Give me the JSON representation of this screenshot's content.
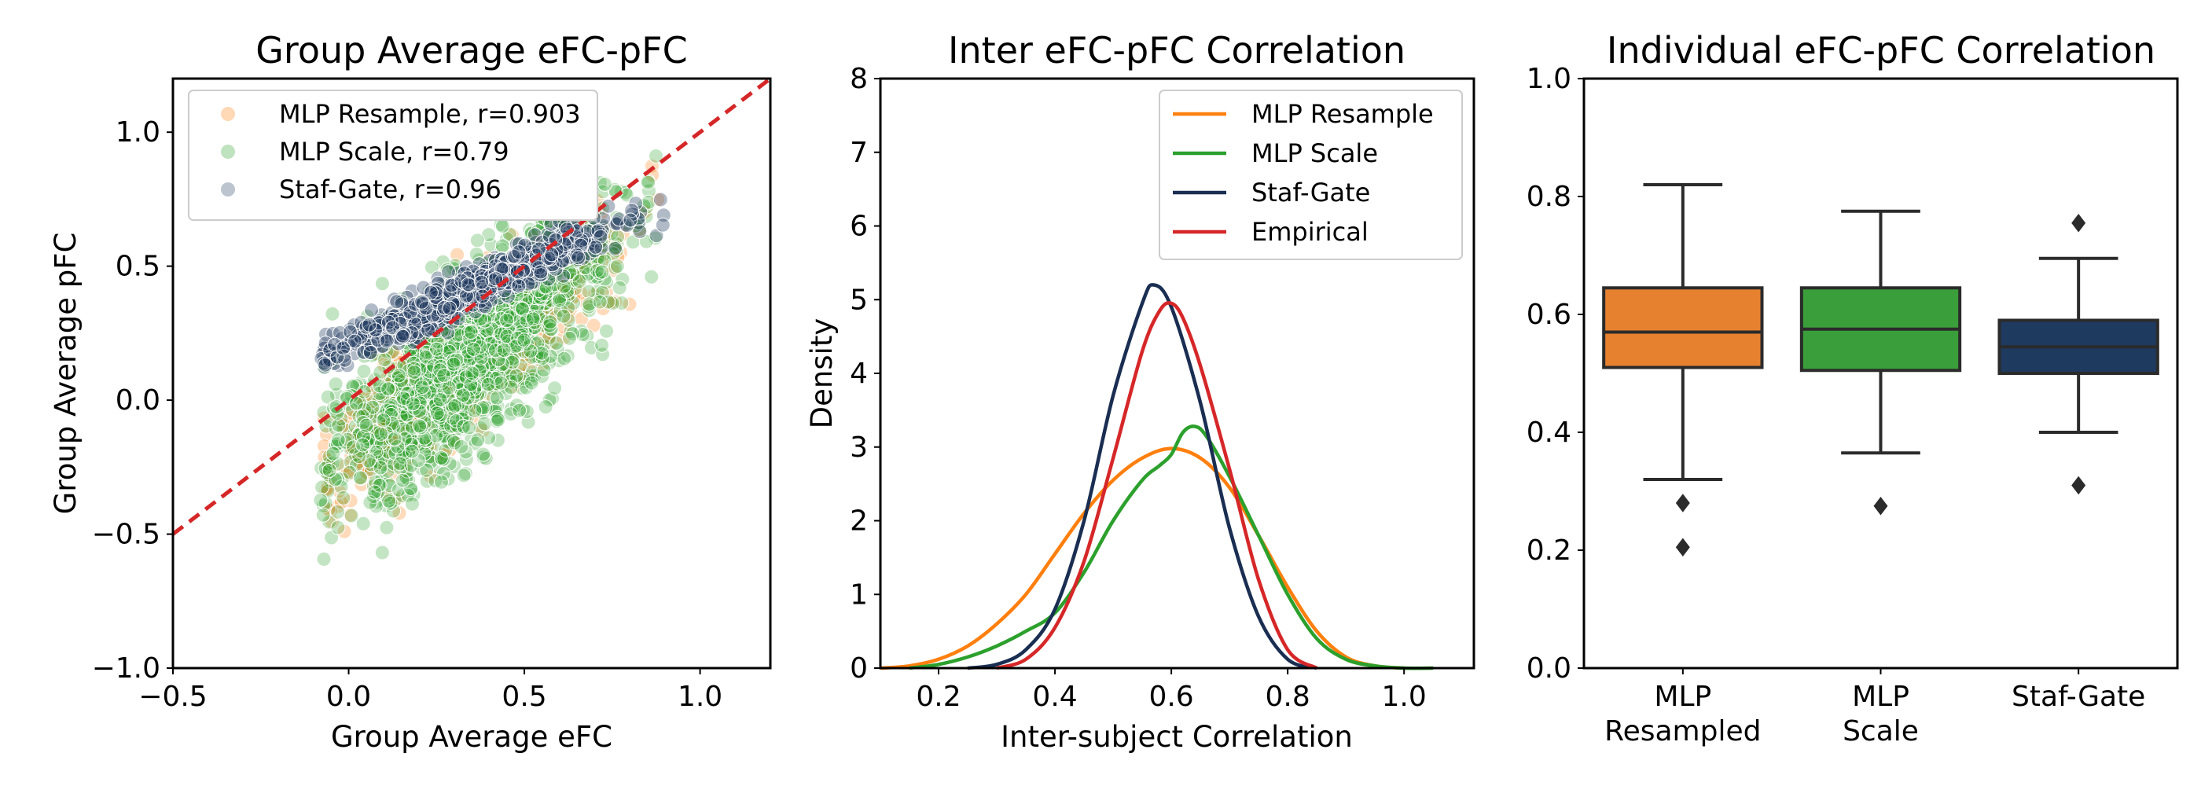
{
  "chart_data": [
    {
      "type": "scatter",
      "title": "Group Average eFC-pFC",
      "xlabel": "Group Average eFC",
      "ylabel": "Group Average pFC",
      "xlim": [
        -0.5,
        1.2
      ],
      "ylim": [
        -1.0,
        1.2
      ],
      "xticks": [
        "−0.5",
        "0.0",
        "0.5",
        "1.0"
      ],
      "xtick_values": [
        -0.5,
        0.0,
        0.5,
        1.0
      ],
      "yticks": [
        "−1.0",
        "−0.5",
        "0.0",
        "0.5",
        "1.0"
      ],
      "ytick_values": [
        -1.0,
        -0.5,
        0.0,
        0.5,
        1.0
      ],
      "identity_line": {
        "color": "#d62728",
        "style": "dashed"
      },
      "legend_position": "upper left",
      "series": [
        {
          "name": "MLP Resample, r=0.903",
          "color": "#ff7f0e",
          "approx_cloud": {
            "x_range": [
              -0.07,
              0.88
            ],
            "slope": 1.05,
            "intercept": -0.2,
            "spread": 0.11
          }
        },
        {
          "name": "MLP Scale, r=0.79",
          "color": "#2ca02c",
          "approx_cloud": {
            "x_range": [
              -0.08,
              0.88
            ],
            "slope": 1.05,
            "intercept": -0.2,
            "spread": 0.16
          }
        },
        {
          "name": "Staf-Gate, r=0.96",
          "color": "#1f3a5f",
          "approx_cloud": {
            "x_range": [
              -0.08,
              0.9
            ],
            "slope": 0.6,
            "intercept": 0.2,
            "spread": 0.04
          }
        }
      ]
    },
    {
      "type": "line",
      "title": "Inter eFC-pFC Correlation",
      "xlabel": "Inter-subject Correlation",
      "ylabel": "Density",
      "xlim": [
        0.1,
        1.12
      ],
      "ylim": [
        0,
        8
      ],
      "xticks": [
        "0.2",
        "0.4",
        "0.6",
        "0.8",
        "1.0"
      ],
      "xtick_values": [
        0.2,
        0.4,
        0.6,
        0.8,
        1.0
      ],
      "yticks": [
        "0",
        "1",
        "2",
        "3",
        "4",
        "5",
        "6",
        "7",
        "8"
      ],
      "ytick_values": [
        0,
        1,
        2,
        3,
        4,
        5,
        6,
        7,
        8
      ],
      "legend_position": "upper right",
      "series": [
        {
          "name": "MLP Resample",
          "color": "#ff7f0e",
          "x": [
            0.1,
            0.15,
            0.2,
            0.25,
            0.3,
            0.35,
            0.4,
            0.45,
            0.5,
            0.55,
            0.6,
            0.65,
            0.7,
            0.75,
            0.8,
            0.85,
            0.9,
            0.95,
            1.0
          ],
          "y": [
            0.0,
            0.03,
            0.12,
            0.3,
            0.6,
            1.0,
            1.55,
            2.1,
            2.55,
            2.85,
            2.98,
            2.85,
            2.45,
            1.8,
            1.1,
            0.5,
            0.15,
            0.03,
            0.0
          ]
        },
        {
          "name": "MLP Scale",
          "color": "#2ca02c",
          "x": [
            0.15,
            0.2,
            0.25,
            0.3,
            0.35,
            0.4,
            0.45,
            0.5,
            0.55,
            0.58,
            0.6,
            0.62,
            0.64,
            0.66,
            0.7,
            0.75,
            0.8,
            0.85,
            0.9,
            0.95,
            1.0,
            1.05
          ],
          "y": [
            0.0,
            0.05,
            0.15,
            0.3,
            0.5,
            0.75,
            1.3,
            2.0,
            2.55,
            2.75,
            2.9,
            3.2,
            3.28,
            3.15,
            2.6,
            1.8,
            1.0,
            0.4,
            0.12,
            0.03,
            0.0,
            0.0
          ]
        },
        {
          "name": "Staf-Gate",
          "color": "#1a2e52",
          "x": [
            0.25,
            0.3,
            0.35,
            0.4,
            0.45,
            0.5,
            0.55,
            0.57,
            0.6,
            0.65,
            0.7,
            0.75,
            0.8,
            0.85
          ],
          "y": [
            0.0,
            0.05,
            0.25,
            0.8,
            2.0,
            3.7,
            4.95,
            5.2,
            4.9,
            3.6,
            1.9,
            0.7,
            0.12,
            0.0
          ]
        },
        {
          "name": "Empirical",
          "color": "#d62728",
          "x": [
            0.3,
            0.35,
            0.4,
            0.45,
            0.5,
            0.55,
            0.58,
            0.6,
            0.62,
            0.65,
            0.7,
            0.75,
            0.8,
            0.85
          ],
          "y": [
            0.0,
            0.12,
            0.55,
            1.45,
            2.85,
            4.3,
            4.85,
            4.95,
            4.75,
            4.1,
            2.7,
            1.2,
            0.25,
            0.0
          ]
        }
      ]
    },
    {
      "type": "box",
      "title": "Individual eFC-pFC Correlation",
      "xlabel": "",
      "ylabel": "",
      "ylim": [
        0.0,
        1.0
      ],
      "yticks": [
        "0.0",
        "0.2",
        "0.4",
        "0.6",
        "0.8",
        "1.0"
      ],
      "ytick_values": [
        0.0,
        0.2,
        0.4,
        0.6,
        0.8,
        1.0
      ],
      "categories": [
        {
          "line1": "MLP",
          "line2": "Resampled"
        },
        {
          "line1": "MLP",
          "line2": "Scale"
        },
        {
          "line1": "Staf-Gate",
          "line2": ""
        }
      ],
      "boxes": [
        {
          "name": "MLP Resampled",
          "color": "#e6812f",
          "q1": 0.51,
          "median": 0.57,
          "q3": 0.645,
          "whisker_low": 0.32,
          "whisker_high": 0.82,
          "outliers": [
            0.28,
            0.205
          ]
        },
        {
          "name": "MLP Scale",
          "color": "#3a9e3a",
          "q1": 0.505,
          "median": 0.575,
          "q3": 0.645,
          "whisker_low": 0.365,
          "whisker_high": 0.775,
          "outliers": [
            0.275
          ]
        },
        {
          "name": "Staf-Gate",
          "color": "#1f3a5f",
          "q1": 0.5,
          "median": 0.545,
          "q3": 0.59,
          "whisker_low": 0.4,
          "whisker_high": 0.695,
          "outliers": [
            0.755,
            0.31
          ]
        }
      ]
    }
  ]
}
